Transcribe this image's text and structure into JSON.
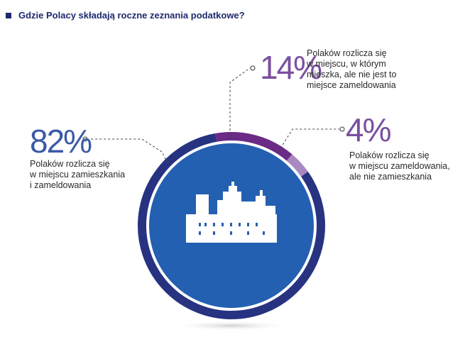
{
  "title": "Gdzie Polacy składają roczne zeznania podatkowe?",
  "colors": {
    "title": "#1d2a6e",
    "ring_main": "#273381",
    "ring_purple": "#6a2a86",
    "ring_light": "#a989c2",
    "inner_circle": "#2460b1",
    "pct_main": "#3a5aa8",
    "pct_purple": "#7a4fa0"
  },
  "icons": [
    "city-buildings-icon"
  ],
  "chart_data": {
    "type": "pie",
    "title": "Gdzie Polacy składają roczne zeznania podatkowe?",
    "series": [
      {
        "name": "w miejscu zamieszkania i zameldowania",
        "value": 82,
        "label": "82%",
        "desc": [
          "Polaków rozlicza się",
          "w miejscu zamieszkania",
          "i zameldowania"
        ]
      },
      {
        "name": "w miejscu, w którym mieszka, ale nie jest to miejsce zameldowania",
        "value": 14,
        "label": "14%",
        "desc": [
          "Polaków rozlicza się",
          "w miejscu, w którym",
          "mieszka, ale nie jest to",
          "miejsce zameldowania"
        ]
      },
      {
        "name": "w miejscu zameldowania, ale nie zamieszkania",
        "value": 4,
        "label": "4%",
        "desc": [
          "Polaków rozlicza się",
          "w miejscu zameldowania,",
          "ale nie zamieszkania"
        ]
      }
    ]
  }
}
